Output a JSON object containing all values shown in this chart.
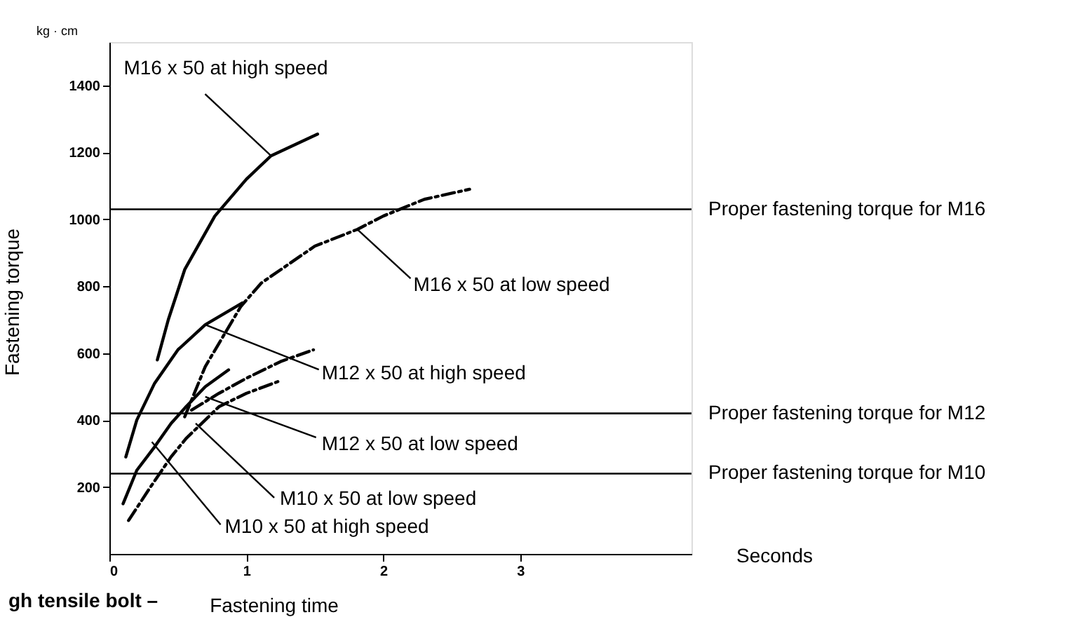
{
  "chart_data": {
    "type": "line",
    "xlabel": "Fastening time",
    "ylabel": "Fastening torque",
    "xlim": [
      0,
      4.25
    ],
    "ylim": [
      0,
      1530
    ],
    "xticks": [
      0,
      1,
      2,
      3
    ],
    "yticks": [
      200,
      400,
      600,
      800,
      1000,
      1200,
      1400
    ],
    "grid": false,
    "marker": "none",
    "series": [
      {
        "color": "#000000",
        "line_style": "solid",
        "x": [
          0.35,
          0.43,
          0.55,
          0.77,
          1.0,
          1.18,
          1.52
        ],
        "values": [
          580,
          700,
          850,
          1010,
          1120,
          1190,
          1255
        ]
      },
      {
        "color": "#000000",
        "line_style": "dashed",
        "x": [
          0.55,
          0.7,
          0.96,
          1.11,
          1.5,
          1.81,
          2.0,
          2.3,
          2.63
        ],
        "values": [
          410,
          560,
          740,
          810,
          920,
          970,
          1010,
          1060,
          1090
        ]
      },
      {
        "color": "#000000",
        "line_style": "solid",
        "x": [
          0.12,
          0.2,
          0.33,
          0.5,
          0.7,
          0.97
        ],
        "values": [
          290,
          400,
          510,
          610,
          685,
          750
        ]
      },
      {
        "color": "#000000",
        "line_style": "dashed",
        "x": [
          0.6,
          0.8,
          1.0,
          1.25,
          1.49
        ],
        "values": [
          430,
          480,
          525,
          575,
          610
        ]
      },
      {
        "color": "#000000",
        "line_style": "solid",
        "x": [
          0.1,
          0.2,
          0.33,
          0.45,
          0.56,
          0.7,
          0.87
        ],
        "values": [
          150,
          250,
          320,
          390,
          440,
          500,
          550
        ]
      },
      {
        "color": "#000000",
        "line_style": "dashed",
        "x": [
          0.14,
          0.3,
          0.45,
          0.56,
          0.8,
          1.0,
          1.23
        ],
        "values": [
          100,
          200,
          290,
          345,
          440,
          480,
          515
        ]
      }
    ],
    "ref_lines": [
      {
        "axis": "y",
        "value": 1030,
        "label": "Proper fastening torque for M16",
        "color": "#000000"
      },
      {
        "axis": "y",
        "value": 420,
        "label": "Proper fastening torque for M12",
        "color": "#000000"
      },
      {
        "axis": "y",
        "value": 240,
        "label": "Proper fastening torque for M10",
        "color": "#000000"
      }
    ],
    "annotations": [
      {
        "text": "M16 x 50 at high speed",
        "x": 1.18,
        "y": 1190
      },
      {
        "text": "M16 x 50 at low speed",
        "x": 1.81,
        "y": 970
      },
      {
        "text": "M12 x 50 at high speed",
        "x": 0.7,
        "y": 685
      },
      {
        "text": "M12 x 50 at low speed",
        "x": 0.7,
        "y": 470
      },
      {
        "text": "M10 x 50 at low speed",
        "x": 0.63,
        "y": 390
      },
      {
        "text": "M10 x 50 at high speed",
        "x": 0.31,
        "y": 335
      },
      "kg · cm",
      "Seconds",
      "gh tensile bolt –"
    ]
  }
}
